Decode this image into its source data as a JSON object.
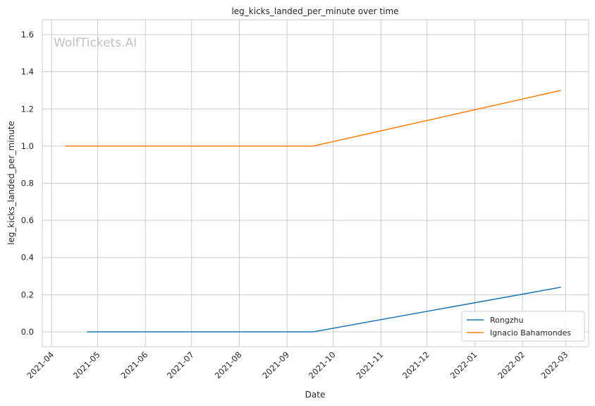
{
  "chart_data": {
    "type": "line",
    "title": "leg_kicks_landed_per_minute over time",
    "xlabel": "Date",
    "ylabel": "leg_kicks_landed_per_minute",
    "watermark": "WolfTickets.AI",
    "x_axis_type": "date",
    "xlim": [
      "2021-03-26",
      "2022-03-16"
    ],
    "ylim": [
      -0.08,
      1.68
    ],
    "x_ticks": [
      "2021-04-01",
      "2021-05-01",
      "2021-06-01",
      "2021-07-01",
      "2021-08-01",
      "2021-09-01",
      "2021-10-01",
      "2021-11-01",
      "2021-12-01",
      "2022-01-01",
      "2022-02-01",
      "2022-03-01"
    ],
    "x_tick_labels": [
      "2021-04",
      "2021-05",
      "2021-06",
      "2021-07",
      "2021-08",
      "2021-09",
      "2021-10",
      "2021-11",
      "2021-12",
      "2022-01",
      "2022-02",
      "2022-03"
    ],
    "y_ticks": [
      0.0,
      0.2,
      0.4,
      0.6,
      0.8,
      1.0,
      1.2,
      1.4,
      1.6
    ],
    "y_tick_labels": [
      "0.0",
      "0.2",
      "0.4",
      "0.6",
      "0.8",
      "1.0",
      "1.2",
      "1.4",
      "1.6"
    ],
    "grid": true,
    "legend_position": "bottom-right",
    "series": [
      {
        "name": "Rongzhu",
        "color": "#1f77b4",
        "x": [
          "2021-04-24",
          "2021-09-18",
          "2022-02-26"
        ],
        "y": [
          0.0,
          0.0,
          0.24
        ]
      },
      {
        "name": "Ignacio Bahamondes",
        "color": "#ff7f0e",
        "x": [
          "2021-04-10",
          "2021-09-18",
          "2022-02-26"
        ],
        "y": [
          1.0,
          1.0,
          1.3
        ]
      }
    ]
  }
}
